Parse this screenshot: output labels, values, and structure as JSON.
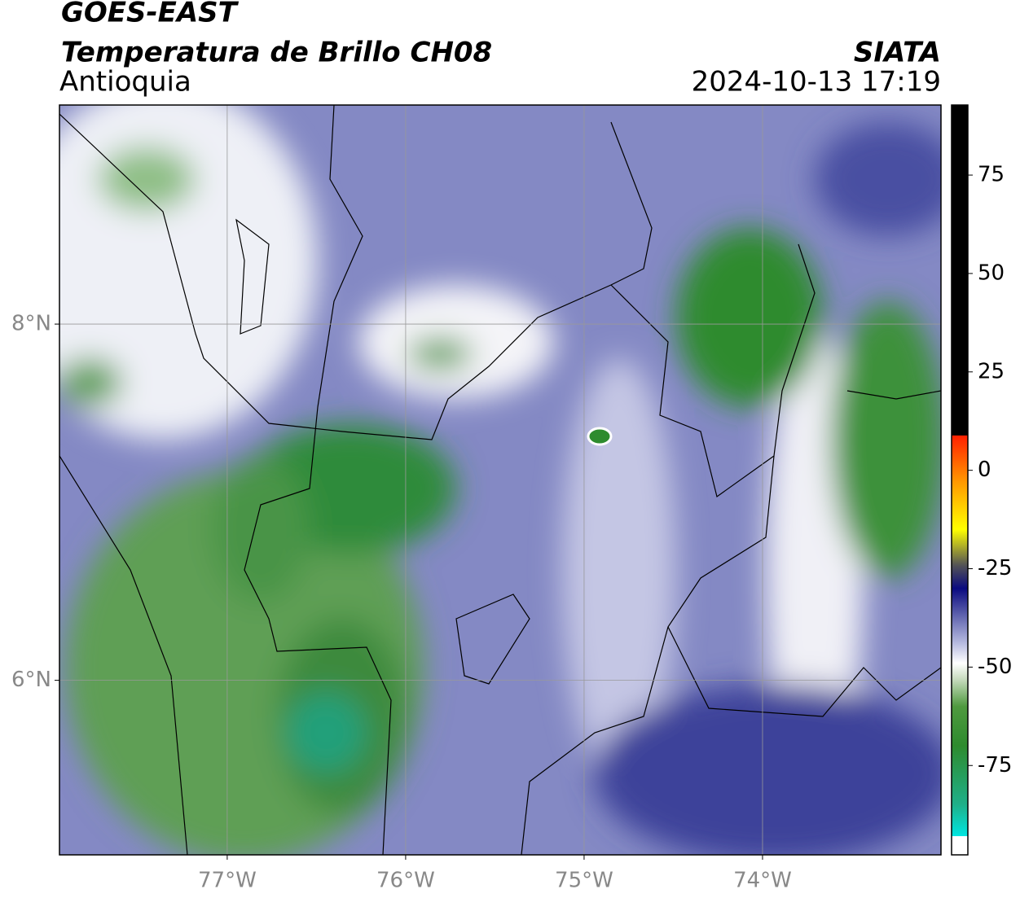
{
  "header": {
    "title": "GOES-EAST",
    "subtitle": "Temperatura de Brillo CH08",
    "region": "Antioquia",
    "source": "SIATA",
    "timestamp": "2024-10-13 17:19"
  },
  "map": {
    "xlim": [
      -77.94,
      -73.0
    ],
    "ylim": [
      5.02,
      9.23
    ],
    "xticks": [
      {
        "value": -77,
        "label": "77°W"
      },
      {
        "value": -76,
        "label": "76°W"
      },
      {
        "value": -75,
        "label": "75°W"
      },
      {
        "value": -74,
        "label": "74°W"
      }
    ],
    "yticks": [
      {
        "value": 8,
        "label": "8°N"
      },
      {
        "value": 6,
        "label": "6°N"
      }
    ],
    "grid": true
  },
  "colorbar": {
    "lim": [
      -97.7,
      92.8
    ],
    "ticks": [
      75,
      50,
      25,
      0,
      -25,
      -50,
      -75
    ],
    "stops": [
      {
        "value": -97.7,
        "color": "#ffffff"
      },
      {
        "value": -93,
        "color": "#ffffff"
      },
      {
        "value": -92.9,
        "color": "#00e5e0"
      },
      {
        "value": -85,
        "color": "#1fb08a"
      },
      {
        "value": -70,
        "color": "#2e8b2e"
      },
      {
        "value": -60,
        "color": "#4f9a3f"
      },
      {
        "value": -53,
        "color": "#c9dcc0"
      },
      {
        "value": -49,
        "color": "#ffffff"
      },
      {
        "value": -44,
        "color": "#b8bce0"
      },
      {
        "value": -36,
        "color": "#5558a8"
      },
      {
        "value": -30,
        "color": "#0a0a80"
      },
      {
        "value": -24,
        "color": "#555555"
      },
      {
        "value": -15,
        "color": "#ffff00"
      },
      {
        "value": -3,
        "color": "#ff9900"
      },
      {
        "value": 8.8,
        "color": "#ff2000"
      },
      {
        "value": 8.9,
        "color": "#000000"
      },
      {
        "value": 92.8,
        "color": "#000000"
      }
    ]
  }
}
